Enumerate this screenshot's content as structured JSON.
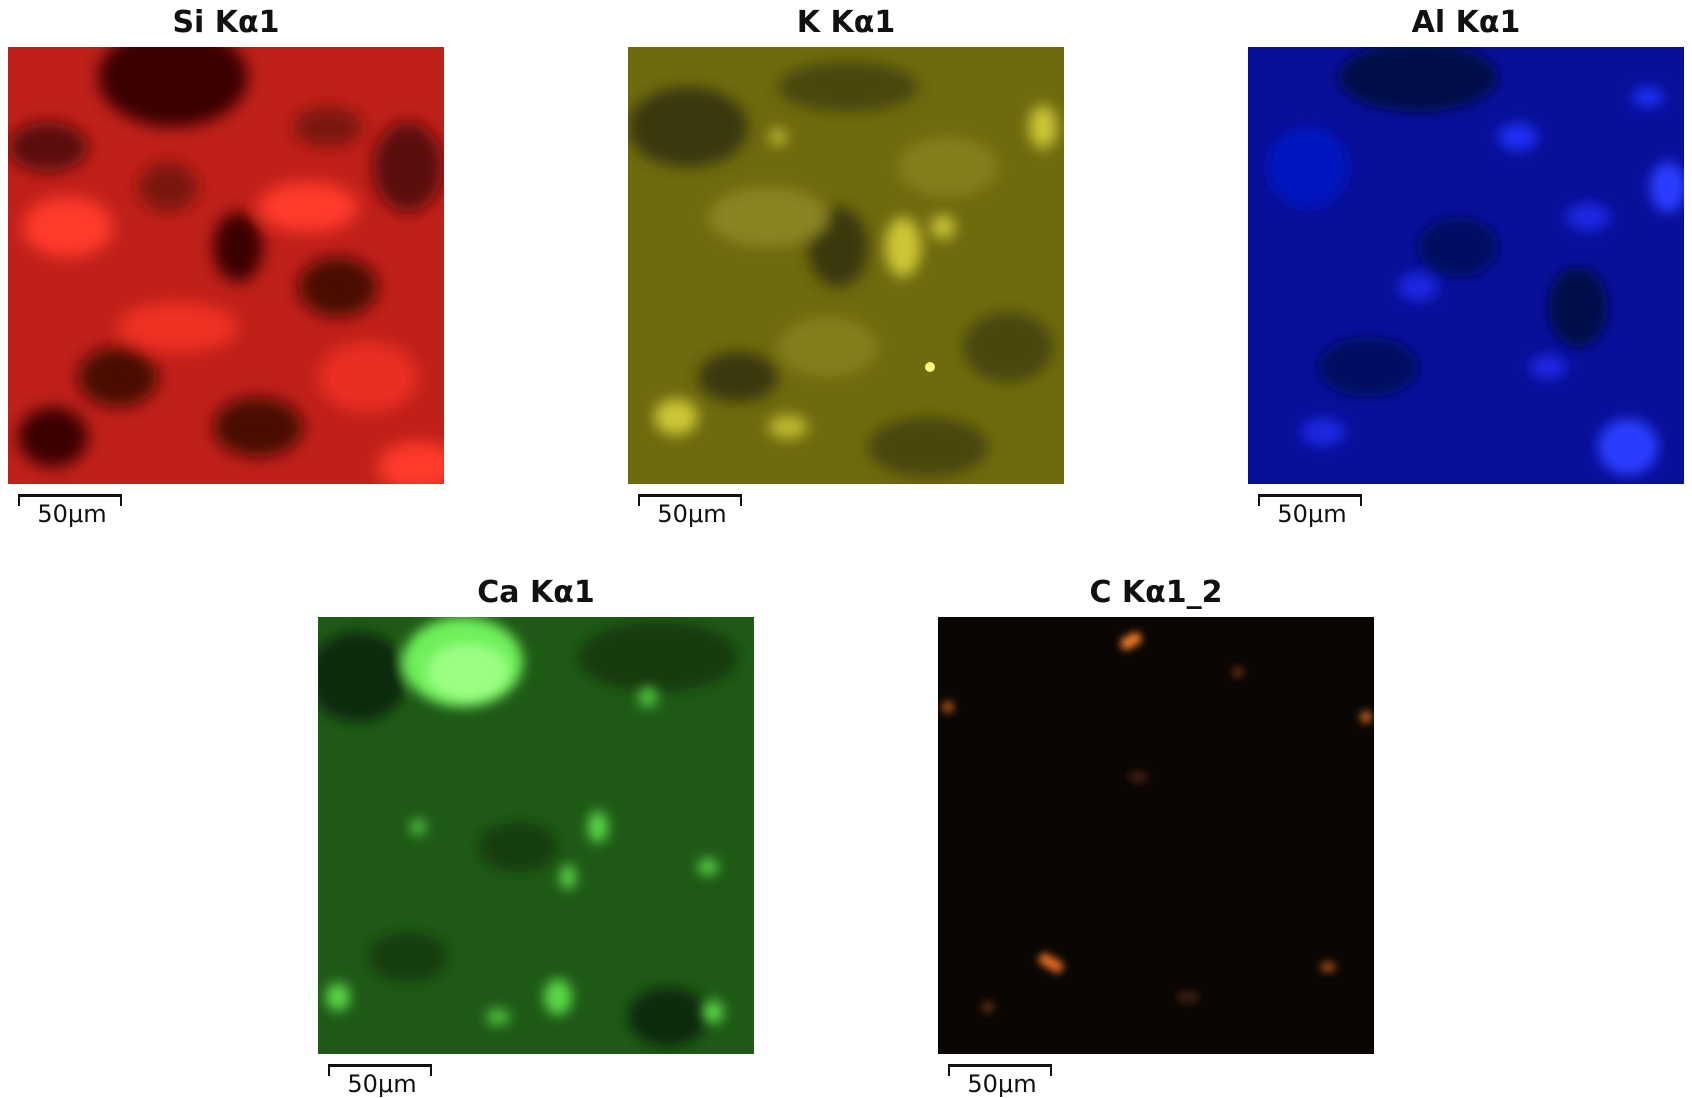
{
  "scale_label": "50μm",
  "maps": [
    {
      "id": "si",
      "title": "Si Kα1",
      "colors": {
        "base": "#c0201a",
        "bright": "#ff3b2a",
        "dark": "#3a0605"
      }
    },
    {
      "id": "k",
      "title": "K Kα1",
      "colors": {
        "base": "#6e6a0e",
        "bright": "#e8e24a",
        "dark": "#262405"
      }
    },
    {
      "id": "al",
      "title": "Al Kα1",
      "colors": {
        "base": "#08109a",
        "bright": "#2a3cff",
        "dark": "#020428"
      }
    },
    {
      "id": "ca",
      "title": "Ca Kα1",
      "colors": {
        "base": "#1e5a16",
        "bright": "#6ff05a",
        "dark": "#071a05"
      }
    },
    {
      "id": "c",
      "title": "C Kα1_2",
      "colors": {
        "base": "#0a0603",
        "bright": "#f07a28",
        "dark": "#000000"
      }
    }
  ]
}
